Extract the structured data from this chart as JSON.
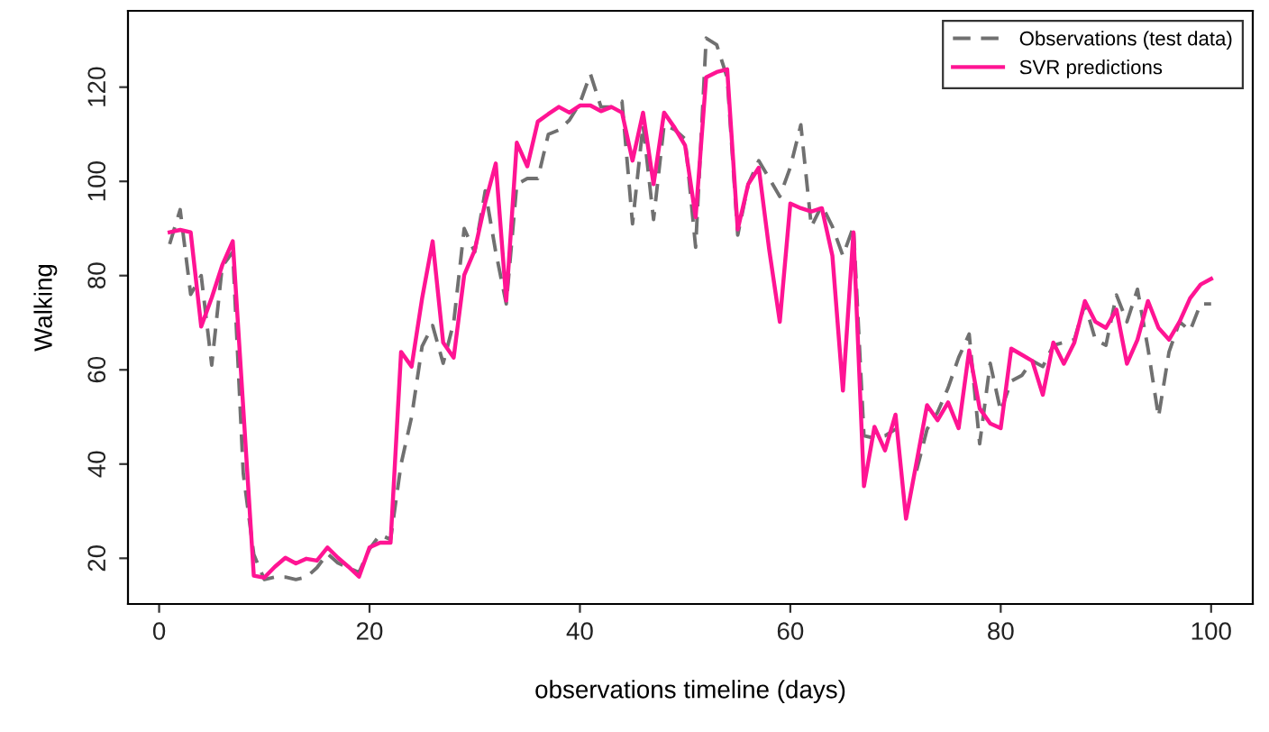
{
  "chart_data": {
    "type": "line",
    "xlabel": "observations timeline (days)",
    "ylabel": "Walking",
    "x": [
      1,
      2,
      3,
      4,
      5,
      6,
      7,
      8,
      9,
      10,
      11,
      12,
      13,
      14,
      15,
      16,
      17,
      18,
      19,
      20,
      21,
      22,
      23,
      24,
      25,
      26,
      27,
      28,
      29,
      30,
      31,
      32,
      33,
      34,
      35,
      36,
      37,
      38,
      39,
      40,
      41,
      42,
      43,
      44,
      45,
      46,
      47,
      48,
      49,
      50,
      51,
      52,
      53,
      54,
      55,
      56,
      57,
      58,
      59,
      60,
      61,
      62,
      63,
      64,
      65,
      66,
      67,
      68,
      69,
      70,
      71,
      72,
      73,
      74,
      75,
      76,
      77,
      78,
      79,
      80,
      81,
      82,
      83,
      84,
      85,
      86,
      87,
      88,
      89,
      90,
      91,
      92,
      93,
      94,
      95,
      96,
      97,
      98,
      99,
      100
    ],
    "series": [
      {
        "name": "Observations (test data)",
        "color": "#707070",
        "line_style": "dashed",
        "values": [
          86.7,
          94,
          76,
          80,
          61,
          82,
          85,
          38,
          20.8,
          15.5,
          16,
          16,
          15.5,
          16,
          18,
          21,
          19,
          18,
          17,
          22,
          25,
          24,
          40,
          50,
          65,
          69.4,
          61.4,
          70,
          90,
          85,
          98,
          85,
          74,
          99.4,
          100.6,
          100.6,
          110,
          110.9,
          113,
          116.6,
          122.8,
          115.8,
          115.8,
          117,
          91,
          112,
          91.9,
          112,
          111,
          109,
          86,
          130.4,
          129,
          122,
          88.6,
          99.4,
          104.4,
          100.6,
          96.8,
          103,
          112,
          90.4,
          94.9,
          90.4,
          84.2,
          90.4,
          46,
          45.5,
          46,
          47.4,
          null,
          38.6,
          47.4,
          51,
          56.2,
          62.6,
          67.6,
          44.3,
          61.4,
          51.2,
          57.6,
          58.8,
          61.9,
          60.7,
          65.2,
          65.8,
          66.4,
          74,
          66.4,
          65.2,
          75.9,
          70.2,
          77.1,
          64.5,
          50,
          63.8,
          70.2,
          68.3,
          74,
          74
        ]
      },
      {
        "name": "SVR predictions",
        "color": "#ff1493",
        "line_style": "solid",
        "values": [
          89.2,
          89.7,
          89.2,
          69.2,
          75.3,
          82.2,
          87.3,
          51.8,
          16.3,
          15.9,
          18.2,
          20.1,
          18.9,
          19.9,
          19.5,
          22.3,
          20.1,
          18.2,
          16.1,
          22.3,
          23.3,
          23.3,
          63.8,
          60.7,
          75.2,
          87.3,
          65.8,
          62.6,
          80.1,
          85.4,
          95.5,
          103.8,
          74.7,
          108.2,
          103.2,
          112.7,
          114.3,
          115.8,
          114.6,
          116.1,
          116.1,
          114.9,
          115.8,
          114.6,
          104.4,
          114.6,
          99.4,
          114.6,
          111.4,
          107.6,
          92.4,
          122.1,
          123.2,
          123.8,
          89.8,
          99.4,
          102.9,
          85.4,
          70.2,
          95.3,
          94.3,
          93.6,
          94.3,
          84.2,
          55.6,
          89.2,
          35.3,
          47.9,
          42.9,
          50.5,
          28.4,
          40.4,
          52.5,
          49.3,
          53.1,
          47.6,
          64.1,
          51.8,
          48.6,
          47.6,
          64.5,
          63.2,
          61.9,
          54.7,
          65.8,
          61.3,
          65.8,
          74.6,
          70.2,
          68.9,
          72.8,
          61.3,
          66.4,
          74.6,
          68.9,
          66.4,
          70.2,
          75.2,
          78.1,
          79.3
        ]
      }
    ],
    "xlim": [
      -2.96,
      103.96
    ],
    "ylim": [
      10.3,
      136.2
    ],
    "xticks": [
      0,
      20,
      40,
      60,
      80,
      100
    ],
    "yticks": [
      20,
      40,
      60,
      80,
      100,
      120
    ],
    "grid": false,
    "legend": "top right",
    "marker": "none"
  }
}
